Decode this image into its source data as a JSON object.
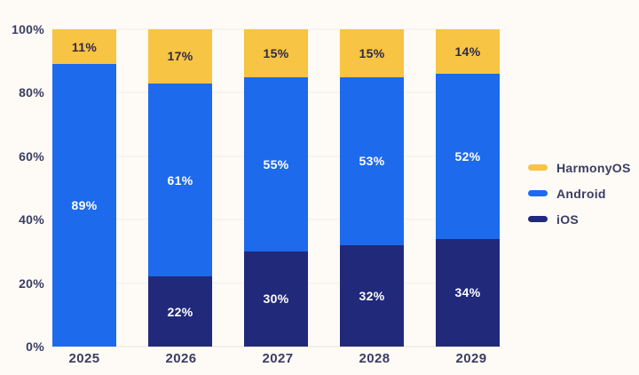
{
  "chart_data": {
    "type": "bar",
    "variant": "stacked-vertical",
    "title": "",
    "xlabel": "",
    "ylabel": "",
    "categories": [
      "2025",
      "2026",
      "2027",
      "2028",
      "2029"
    ],
    "series": [
      {
        "name": "HarmonyOS",
        "color": "#F7C443",
        "label_color": "#2E2B48",
        "values": [
          11,
          17,
          15,
          15,
          14
        ]
      },
      {
        "name": "Android",
        "color": "#1D6AEC",
        "label_color": "#FFFFFF",
        "values": [
          89,
          61,
          55,
          53,
          52
        ]
      },
      {
        "name": "iOS",
        "color": "#21297B",
        "label_color": "#FFFFFF",
        "values": [
          0,
          22,
          30,
          32,
          34
        ]
      }
    ],
    "value_label_suffix": "%",
    "y_ticks": [
      "0%",
      "20%",
      "40%",
      "60%",
      "80%",
      "100%"
    ],
    "ylim": [
      0,
      100
    ],
    "grid": "horizontal",
    "legend_position": "right",
    "legend_items": [
      "HarmonyOS",
      "Android",
      "iOS"
    ]
  },
  "colors": {
    "background": "#FEFAF5",
    "gridline": "#F0ECE5",
    "baseline": "#E8E4DC",
    "axis_text": "#3A3D63",
    "legend_text": "#3A3D63"
  }
}
